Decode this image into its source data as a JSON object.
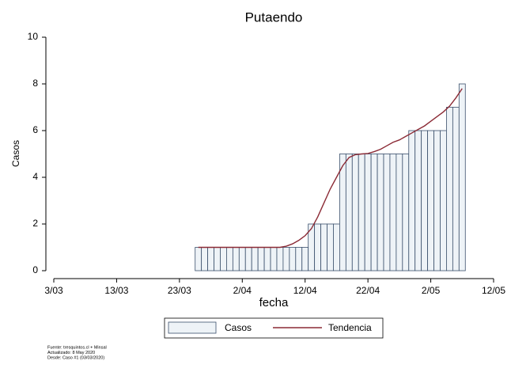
{
  "chart_data": {
    "type": "bar",
    "title": "Putaendo",
    "x_label": "fecha",
    "y_label": "Casos",
    "x": [
      "26/03",
      "27/03",
      "28/03",
      "29/03",
      "30/03",
      "31/03",
      "1/04",
      "2/04",
      "3/04",
      "4/04",
      "5/04",
      "6/04",
      "7/04",
      "8/04",
      "9/04",
      "10/04",
      "11/04",
      "12/04",
      "13/04",
      "14/04",
      "15/04",
      "16/04",
      "17/04",
      "18/04",
      "19/04",
      "20/04",
      "21/04",
      "22/04",
      "23/04",
      "24/04",
      "25/04",
      "26/04",
      "27/04",
      "28/04",
      "29/04",
      "30/04",
      "1/05",
      "2/05",
      "3/05",
      "4/05",
      "5/05",
      "6/05",
      "7/05"
    ],
    "series": [
      {
        "name": "Casos",
        "type": "bar",
        "color": "#eef3f7",
        "edge_color": "#3a4f6b",
        "values": [
          1,
          1,
          1,
          1,
          1,
          1,
          1,
          1,
          1,
          1,
          1,
          1,
          1,
          1,
          1,
          1,
          1,
          1,
          2,
          2,
          2,
          2,
          2,
          5,
          5,
          5,
          5,
          5,
          5,
          5,
          5,
          5,
          5,
          5,
          6,
          6,
          6,
          6,
          6,
          6,
          7,
          7,
          8
        ]
      },
      {
        "name": "Tendencia",
        "type": "line",
        "color": "#8b2a35",
        "values": [
          1,
          1,
          1,
          1,
          1,
          1,
          1,
          1,
          1,
          1,
          1,
          1,
          1,
          1,
          1.05,
          1.15,
          1.3,
          1.5,
          1.8,
          2.3,
          2.9,
          3.5,
          4,
          4.5,
          4.85,
          4.97,
          5,
          5.02,
          5.1,
          5.2,
          5.35,
          5.5,
          5.6,
          5.75,
          5.9,
          6.05,
          6.2,
          6.4,
          6.6,
          6.8,
          7.05,
          7.4,
          7.8
        ]
      }
    ],
    "xlim": [
      "3/03",
      "12/05"
    ],
    "xticks": [
      "3/03",
      "13/03",
      "23/03",
      "2/04",
      "12/04",
      "22/04",
      "2/05",
      "12/05"
    ],
    "ylim": [
      0,
      10
    ],
    "yticks": [
      0,
      2,
      4,
      6,
      8,
      10
    ],
    "legend_position": "bottom",
    "notes": [
      "Fuente: tresquintos.cl + Minsal",
      "Actualizado: 8 May 2020",
      "Desde: Caso #1  (03/03/2020)"
    ]
  }
}
